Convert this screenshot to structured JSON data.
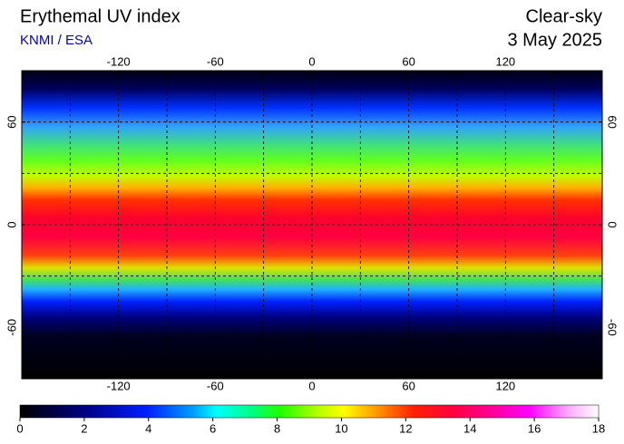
{
  "header": {
    "title": "Erythemal UV index",
    "source": "KNMI / ESA",
    "condition": "Clear-sky",
    "date": "3 May 2025"
  },
  "map": {
    "lon_range": [
      -180,
      180
    ],
    "lat_range": [
      90,
      -90
    ],
    "lon_ticks": [
      -120,
      -60,
      0,
      60,
      120
    ],
    "lat_ticks": [
      60,
      0,
      -60
    ]
  },
  "colorbar": {
    "range": [
      0,
      18
    ],
    "ticks": [
      0,
      2,
      4,
      6,
      8,
      10,
      12,
      14,
      16,
      18
    ]
  }
}
